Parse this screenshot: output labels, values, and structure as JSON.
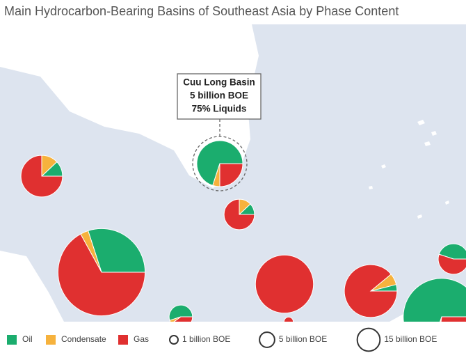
{
  "chart_data": {
    "type": "pie",
    "title": "Main Hydrocarbon-Bearing Basins of Southeast Asia by Phase Content",
    "series": [
      {
        "name": "Oil",
        "color": "#1bad6e"
      },
      {
        "name": "Condensate",
        "color": "#f6b23d"
      },
      {
        "name": "Gas",
        "color": "#e03030"
      }
    ],
    "basins": [
      {
        "size": 4.1,
        "values": [
          12,
          13,
          75
        ]
      },
      {
        "size": 5,
        "values": [
          70,
          5,
          25
        ]
      },
      {
        "size": 2.2,
        "values": [
          12,
          13,
          75
        ]
      },
      {
        "size": 18,
        "values": [
          30,
          3,
          67
        ]
      },
      {
        "size": 1.3,
        "values": [
          55,
          5,
          40
        ]
      },
      {
        "size": 8,
        "values": [
          0,
          0,
          100
        ]
      },
      {
        "size": 6.6,
        "values": [
          4,
          7,
          89
        ]
      },
      {
        "size": 14,
        "values": [
          70,
          3,
          27
        ]
      },
      {
        "size": 2.2,
        "values": [
          45,
          0,
          55
        ]
      },
      {
        "size": 0.2,
        "values": [
          0,
          0,
          100
        ]
      }
    ],
    "size_legend": [
      {
        "value": 1,
        "label": "1 billion BOE"
      },
      {
        "value": 5,
        "label": "5 billion BOE"
      },
      {
        "value": 15,
        "label": "15 billion BOE"
      }
    ],
    "annotation": [
      "Cuu Long Basin",
      "5 billion BOE",
      "75% Liquids"
    ]
  }
}
